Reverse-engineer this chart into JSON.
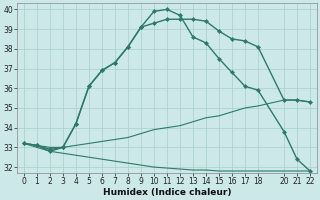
{
  "xlabel": "Humidex (Indice chaleur)",
  "bg_color": "#cce8e8",
  "grid_color": "#aacece",
  "line_color": "#2d7a6a",
  "xlim": [
    -0.5,
    22.5
  ],
  "ylim": [
    31.7,
    40.3
  ],
  "yticks": [
    32,
    33,
    34,
    35,
    36,
    37,
    38,
    39,
    40
  ],
  "xticks": [
    0,
    1,
    2,
    3,
    4,
    5,
    6,
    7,
    8,
    9,
    10,
    11,
    12,
    13,
    14,
    15,
    16,
    17,
    18,
    20,
    21,
    22
  ],
  "series": [
    {
      "x": [
        0,
        1,
        2,
        3,
        4,
        5,
        6,
        7,
        8,
        9,
        10,
        11,
        12,
        13,
        14,
        15,
        16,
        17,
        18,
        20,
        21,
        22
      ],
      "y": [
        33.2,
        33.1,
        32.8,
        33.0,
        34.2,
        36.1,
        36.9,
        37.3,
        38.1,
        39.1,
        39.9,
        40.0,
        39.7,
        38.6,
        38.3,
        37.5,
        36.8,
        36.1,
        35.9,
        33.8,
        32.4,
        31.8
      ],
      "markers": true,
      "lw": 1.0
    },
    {
      "x": [
        0,
        1,
        2,
        3,
        4,
        5,
        6,
        7,
        8,
        9,
        10,
        11,
        12,
        13,
        14,
        15,
        16,
        17,
        18,
        20,
        21,
        22
      ],
      "y": [
        33.2,
        33.1,
        32.9,
        33.0,
        34.2,
        36.1,
        36.9,
        37.3,
        38.1,
        39.1,
        39.3,
        39.5,
        39.5,
        39.5,
        39.4,
        38.9,
        38.5,
        38.4,
        38.1,
        35.4,
        35.4,
        35.3
      ],
      "markers": true,
      "lw": 1.0
    },
    {
      "x": [
        0,
        1,
        2,
        3,
        4,
        5,
        6,
        7,
        8,
        9,
        10,
        11,
        12,
        13,
        14,
        15,
        16,
        17,
        18,
        20,
        21,
        22
      ],
      "y": [
        33.2,
        33.1,
        33.0,
        33.0,
        33.1,
        33.2,
        33.3,
        33.4,
        33.5,
        33.7,
        33.9,
        34.0,
        34.1,
        34.3,
        34.5,
        34.6,
        34.8,
        35.0,
        35.1,
        35.4,
        35.4,
        35.3
      ],
      "markers": false,
      "lw": 0.8
    },
    {
      "x": [
        0,
        1,
        2,
        3,
        4,
        5,
        6,
        7,
        8,
        9,
        10,
        11,
        12,
        13,
        14,
        15,
        16,
        17,
        18,
        20,
        21,
        22
      ],
      "y": [
        33.2,
        33.0,
        32.8,
        32.7,
        32.6,
        32.5,
        32.4,
        32.3,
        32.2,
        32.1,
        32.0,
        31.95,
        31.9,
        31.85,
        31.85,
        31.8,
        31.8,
        31.8,
        31.8,
        31.8,
        31.8,
        31.8
      ],
      "markers": false,
      "lw": 0.8
    }
  ]
}
